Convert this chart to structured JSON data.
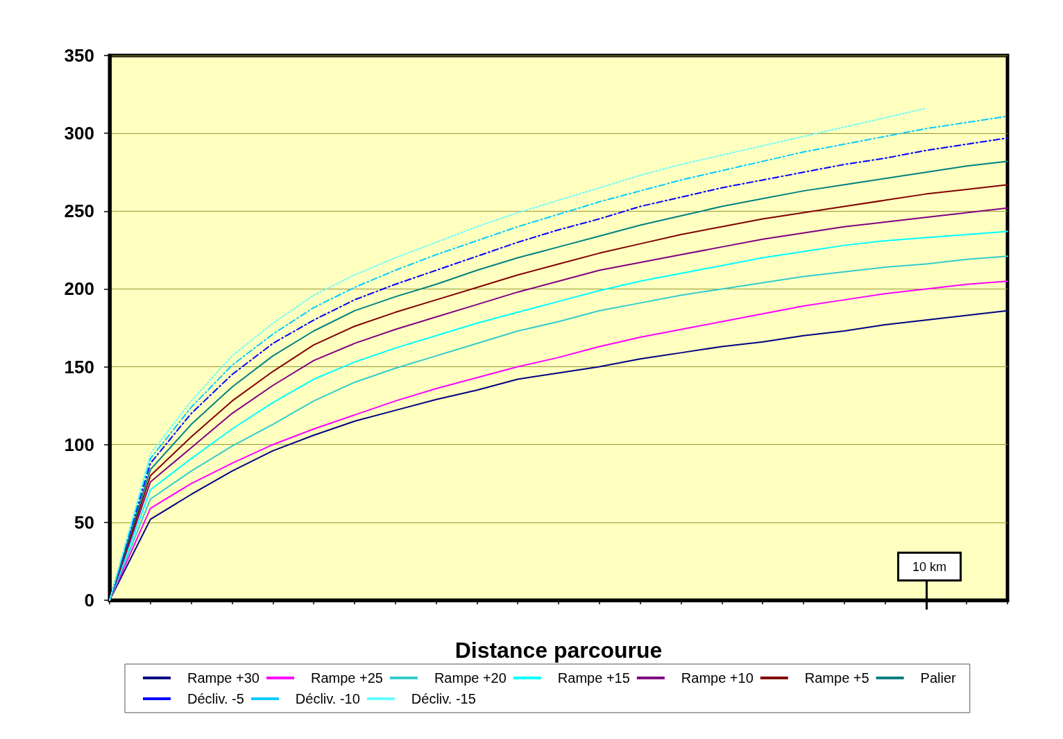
{
  "chart_data": {
    "type": "line",
    "xlabel": "Distance parcourue",
    "categories": [
      null,
      null,
      null,
      null,
      null,
      null,
      null,
      null,
      null,
      null,
      null,
      null,
      null,
      null,
      null,
      null,
      null,
      null,
      null,
      null,
      null,
      null,
      null
    ],
    "ylim": [
      0,
      350
    ],
    "yticks": [
      0,
      50,
      100,
      150,
      200,
      250,
      300,
      350
    ],
    "grid": "y",
    "legend": "bottom",
    "tick_labels": "y",
    "marker": "none",
    "annotations": [
      "10 km"
    ],
    "series": [
      {
        "name": "Rampe +30",
        "color": "#000080",
        "line_style": "solid",
        "values": [
          0,
          52,
          68,
          83,
          96,
          106,
          115,
          122,
          129,
          135,
          142,
          146,
          150,
          155,
          159,
          163,
          166,
          170,
          173,
          177,
          180,
          183,
          186
        ]
      },
      {
        "name": "Rampe +25",
        "color": "#ff00ff",
        "line_style": "solid",
        "values": [
          0,
          59,
          75,
          88,
          100,
          110,
          119,
          128,
          136,
          143,
          150,
          156,
          163,
          169,
          174,
          179,
          184,
          189,
          193,
          197,
          200,
          203,
          205
        ]
      },
      {
        "name": "Rampe +20",
        "color": "#33cccc",
        "line_style": "solid",
        "values": [
          0,
          65,
          83,
          99,
          113,
          128,
          140,
          149,
          157,
          165,
          173,
          179,
          186,
          191,
          196,
          200,
          204,
          208,
          211,
          214,
          216,
          219,
          221
        ]
      },
      {
        "name": "Rampe +15",
        "color": "#00ffff",
        "line_style": "solid",
        "values": [
          0,
          71,
          91,
          110,
          127,
          142,
          153,
          162,
          170,
          178,
          185,
          192,
          199,
          205,
          210,
          215,
          220,
          224,
          228,
          231,
          233,
          235,
          237
        ]
      },
      {
        "name": "Rampe +10",
        "color": "#800080",
        "line_style": "solid",
        "values": [
          0,
          76,
          98,
          120,
          138,
          154,
          165,
          174,
          182,
          190,
          198,
          205,
          212,
          217,
          222,
          227,
          232,
          236,
          240,
          243,
          246,
          249,
          252
        ]
      },
      {
        "name": "Rampe +5",
        "color": "#800000",
        "line_style": "solid",
        "values": [
          0,
          80,
          105,
          128,
          147,
          164,
          176,
          185,
          193,
          201,
          209,
          216,
          223,
          229,
          235,
          240,
          245,
          249,
          253,
          257,
          261,
          264,
          267
        ]
      },
      {
        "name": "Palier",
        "color": "#008080",
        "line_style": "solid",
        "values": [
          0,
          84,
          113,
          137,
          157,
          173,
          186,
          195,
          203,
          212,
          220,
          227,
          234,
          241,
          247,
          253,
          258,
          263,
          267,
          271,
          275,
          279,
          282
        ]
      },
      {
        "name": "Décliv. -5",
        "color": "#0000ff",
        "line_style": "dashed",
        "values": [
          0,
          88,
          120,
          145,
          165,
          180,
          193,
          203,
          212,
          221,
          230,
          238,
          245,
          253,
          259,
          265,
          270,
          275,
          280,
          284,
          289,
          293,
          297
        ]
      },
      {
        "name": "Décliv. -10",
        "color": "#00ccff",
        "line_style": "dashed",
        "values": [
          0,
          91,
          124,
          151,
          171,
          188,
          201,
          212,
          222,
          231,
          240,
          248,
          256,
          263,
          270,
          276,
          282,
          288,
          293,
          298,
          303,
          307,
          311
        ]
      },
      {
        "name": "Décliv. -15",
        "color": "#66ffff",
        "line_style": "dotted",
        "values": [
          0,
          94,
          128,
          157,
          178,
          196,
          209,
          220,
          230,
          240,
          249,
          257,
          265,
          273,
          280,
          286,
          292,
          298,
          304,
          310,
          316,
          null,
          null
        ]
      }
    ]
  }
}
